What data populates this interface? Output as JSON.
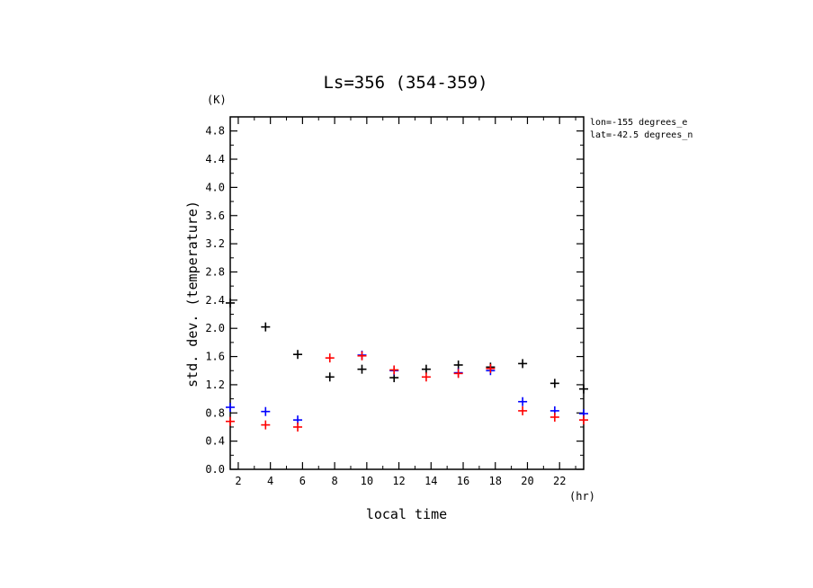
{
  "chart_data": {
    "type": "scatter",
    "title": "Ls=356 (354-359)",
    "xlabel": "local time",
    "ylabel": "std. dev. (temperature)",
    "x_unit": "(hr)",
    "y_unit": "(K)",
    "info_lines": [
      "lon=-155 degrees_e",
      "lat=-42.5 degrees_n"
    ],
    "xlim": [
      1.5,
      23.5
    ],
    "ylim": [
      0.0,
      5.0
    ],
    "x_ticks": [
      2,
      4,
      6,
      8,
      10,
      12,
      14,
      16,
      18,
      20,
      22
    ],
    "y_ticks": [
      0.0,
      0.4,
      0.8,
      1.2,
      1.6,
      2.0,
      2.4,
      2.8,
      3.2,
      3.6,
      4.0,
      4.4,
      4.8
    ],
    "y_tick_labels": [
      "0.0",
      "0.4",
      "0.8",
      "1.2",
      "1.6",
      "2.0",
      "2.4",
      "2.8",
      "3.2",
      "3.6",
      "4.0",
      "4.4",
      "4.8"
    ],
    "grid": false,
    "series": [
      {
        "color": "#000000",
        "marker": "plus",
        "points": [
          [
            1.5,
            2.36
          ],
          [
            3.7,
            2.02
          ],
          [
            5.7,
            1.63
          ],
          [
            7.7,
            1.31
          ],
          [
            9.7,
            1.42
          ],
          [
            11.7,
            1.3
          ],
          [
            13.7,
            1.42
          ],
          [
            15.7,
            1.48
          ],
          [
            17.7,
            1.45
          ],
          [
            19.7,
            1.5
          ],
          [
            21.7,
            1.22
          ],
          [
            23.5,
            1.14
          ]
        ]
      },
      {
        "color": "#0000ff",
        "marker": "plus",
        "points": [
          [
            1.5,
            0.88
          ],
          [
            3.7,
            0.82
          ],
          [
            5.7,
            0.7
          ],
          [
            9.7,
            1.62
          ],
          [
            11.7,
            1.4
          ],
          [
            15.7,
            1.37
          ],
          [
            17.7,
            1.4
          ],
          [
            19.7,
            0.96
          ],
          [
            21.7,
            0.83
          ],
          [
            23.5,
            0.79
          ]
        ]
      },
      {
        "color": "#ff0000",
        "marker": "plus",
        "points": [
          [
            1.5,
            0.68
          ],
          [
            3.7,
            0.63
          ],
          [
            5.7,
            0.6
          ],
          [
            7.7,
            1.58
          ],
          [
            9.7,
            1.61
          ],
          [
            11.7,
            1.41
          ],
          [
            13.7,
            1.31
          ],
          [
            15.7,
            1.36
          ],
          [
            17.7,
            1.43
          ],
          [
            19.7,
            0.83
          ],
          [
            21.7,
            0.74
          ],
          [
            23.5,
            0.7
          ]
        ]
      }
    ]
  }
}
